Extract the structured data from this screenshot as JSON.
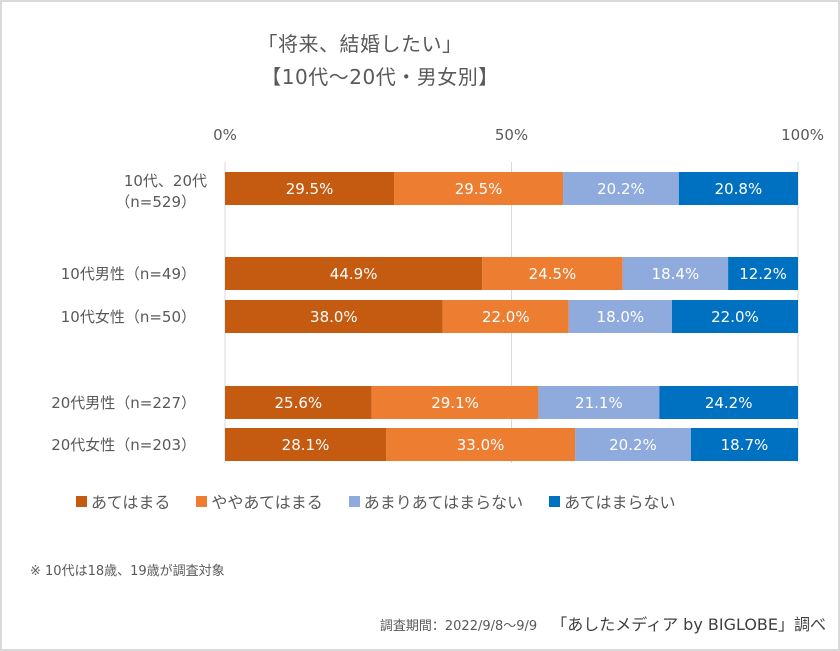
{
  "chart_data": {
    "type": "bar",
    "orientation": "horizontal",
    "stacked": "100%",
    "title": [
      "「将来、結婚したい」",
      "【10代～20代・男女別】"
    ],
    "xlabel": "",
    "ylabel": "",
    "xlim": [
      0,
      100
    ],
    "x_ticks": [
      "0%",
      "50%",
      "100%"
    ],
    "x_tick_values": [
      0,
      50,
      100
    ],
    "x_axis_position": "top",
    "grid": true,
    "legend_position": "bottom",
    "categories": [
      [
        "10代、20代",
        "（n=529）"
      ],
      [
        "10代男性（n=49）"
      ],
      [
        "10代女性（n=50）"
      ],
      [
        "20代男性（n=227）"
      ],
      [
        "20代女性（n=203）"
      ]
    ],
    "category_groups": [
      [
        0
      ],
      [
        1,
        2
      ],
      [
        3,
        4
      ]
    ],
    "series": [
      {
        "name": "あてはまる",
        "color": "#c55a11",
        "values": [
          29.5,
          44.9,
          38.0,
          25.6,
          28.1
        ]
      },
      {
        "name": "ややあてはまる",
        "color": "#ed7d31",
        "values": [
          29.5,
          24.5,
          22.0,
          29.1,
          33.0
        ]
      },
      {
        "name": "あまりあてはまらない",
        "color": "#8faadc",
        "values": [
          20.2,
          18.4,
          18.0,
          21.1,
          20.2
        ]
      },
      {
        "name": "あてはまらない",
        "color": "#0070c0",
        "values": [
          20.8,
          12.2,
          22.0,
          24.2,
          18.7
        ]
      }
    ],
    "data_label_format": "{v}%"
  },
  "footer": {
    "note": "※ 10代は18歳、19歳が調査対象",
    "period": "調査期間：2022/9/8～9/9",
    "credit": "「あしたメディア by BIGLOBE」調べ"
  }
}
